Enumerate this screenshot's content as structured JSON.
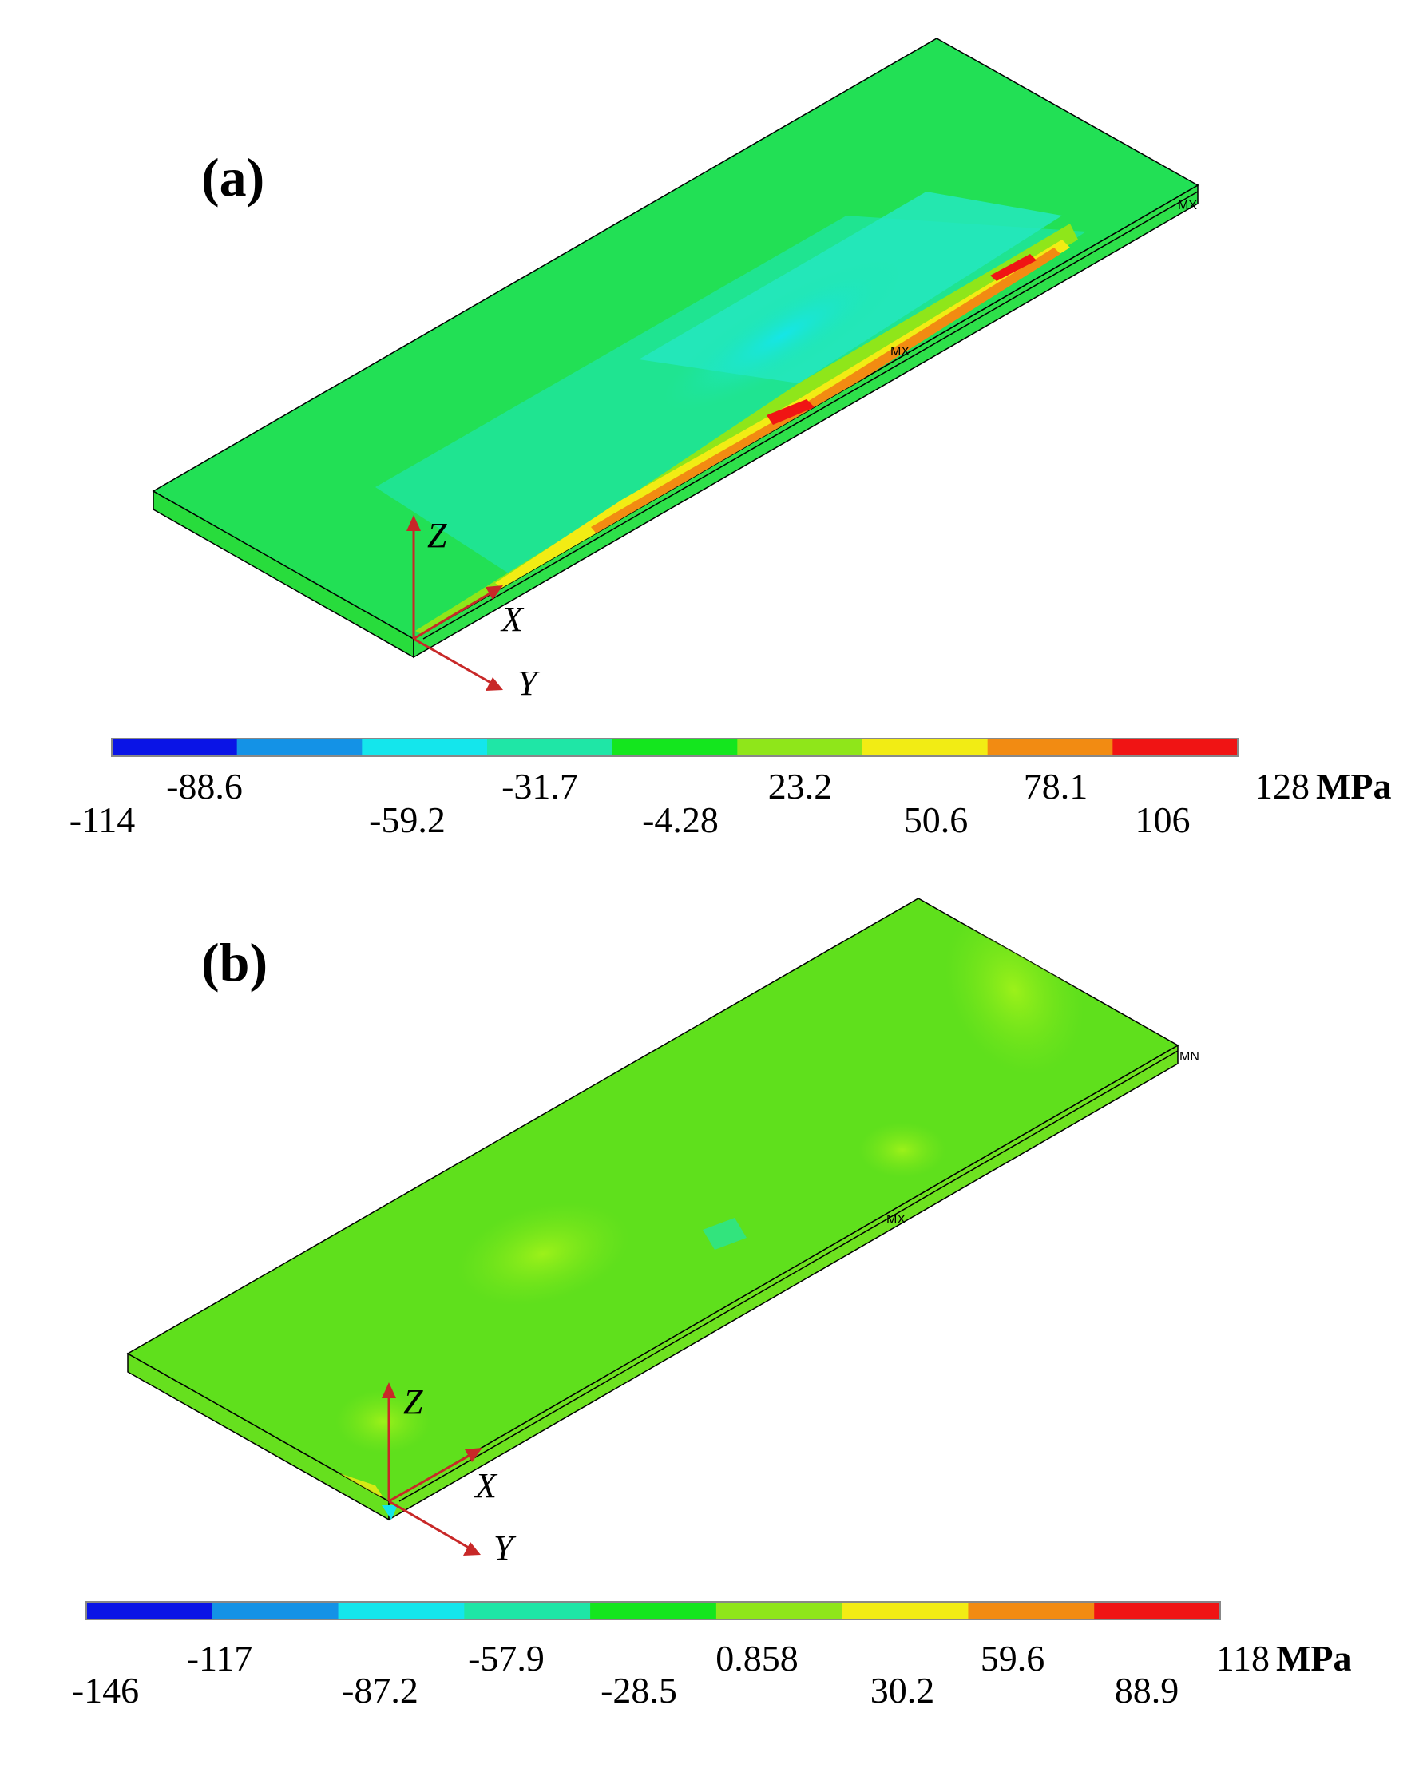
{
  "panels": [
    {
      "label": "(a)",
      "colorbar": {
        "colors": [
          "#0a14e6",
          "#1492e6",
          "#14e6ec",
          "#1fe6a6",
          "#14e61e",
          "#8fe61a",
          "#f2ec14",
          "#f28b12",
          "#f01414"
        ],
        "ticks_upper": [
          "-88.6",
          "-31.7",
          "23.2",
          "78.1",
          "128"
        ],
        "ticks_lower": [
          "-114",
          "-59.2",
          "-4.28",
          "50.6",
          "106"
        ],
        "unit": "MPa"
      },
      "markers": [
        "MX",
        "MX"
      ],
      "axes": {
        "z": "Z",
        "x": "X",
        "y": "Y"
      }
    },
    {
      "label": "(b)",
      "colorbar": {
        "colors": [
          "#0a14e6",
          "#1492e6",
          "#14e6ec",
          "#1fe6a6",
          "#14e61e",
          "#8fe61a",
          "#f2ec14",
          "#f28b12",
          "#f01414"
        ],
        "ticks_upper": [
          "-117",
          "-57.9",
          "0.858",
          "59.6",
          "118"
        ],
        "ticks_lower": [
          "-146",
          "-87.2",
          "-28.5",
          "30.2",
          "88.9"
        ],
        "unit": "MPa"
      },
      "markers": [
        "MN",
        "MX"
      ],
      "axes": {
        "z": "Z",
        "x": "X",
        "y": "Y"
      }
    }
  ]
}
